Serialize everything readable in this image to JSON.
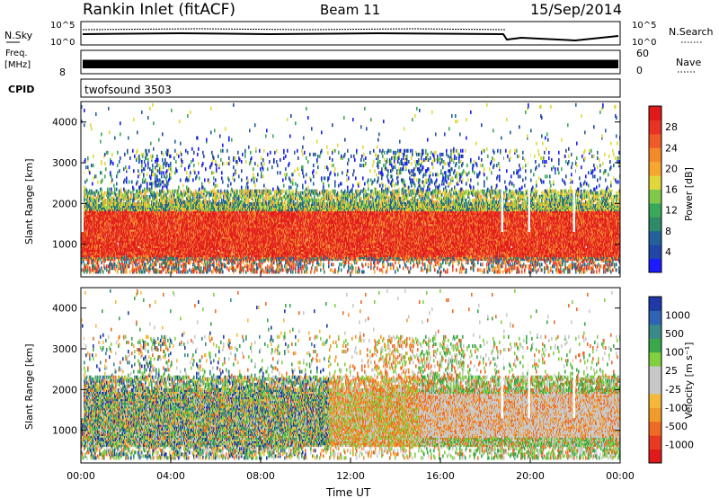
{
  "header": {
    "radar": "Rankin Inlet (fitACF)",
    "beam": "Beam 11",
    "date": "15/Sep/2014"
  },
  "top_panels": {
    "nsky": {
      "label": "N.Sky",
      "ticks": [
        "10^5",
        "10^0"
      ]
    },
    "nsearch": {
      "label": "N.Search",
      "ticks": [
        "10^5",
        "10^0"
      ]
    },
    "freq": {
      "label_line1": "Freq.",
      "label_line2": "[MHz]",
      "ticks": [
        "8"
      ]
    },
    "nave": {
      "label": "Nave",
      "ticks": [
        "60",
        "0"
      ]
    },
    "cpid": {
      "label": "CPID",
      "value": "twofsound 3503"
    }
  },
  "chart_data": [
    {
      "type": "heatmap",
      "name": "Power",
      "ylabel": "Slant Range [km]",
      "ylim": [
        200,
        4500
      ],
      "yticks": [
        1000,
        2000,
        3000,
        4000
      ],
      "xlim": [
        0,
        24
      ],
      "colorbar": {
        "label": "Power [dB]",
        "ticks": [
          "4",
          "8",
          "12",
          "16",
          "20",
          "24",
          "28"
        ],
        "colors": [
          "#1b1bff",
          "#2246a8",
          "#23609c",
          "#2f8a6a",
          "#3aa85a",
          "#7fc84a",
          "#e0d83a",
          "#f7a630",
          "#f38a2a",
          "#ef5a28",
          "#e83223",
          "#e01a1a"
        ]
      }
    },
    {
      "type": "heatmap",
      "name": "Velocity",
      "ylabel": "Slant Range [km]",
      "ylim": [
        200,
        4500
      ],
      "yticks": [
        1000,
        2000,
        3000,
        4000
      ],
      "xlim": [
        0,
        24
      ],
      "xlabel": "Time UT",
      "xticks": [
        "00:00",
        "04:00",
        "08:00",
        "12:00",
        "16:00",
        "20:00",
        "00:00"
      ],
      "colorbar": {
        "label": "Velocity [m s⁻¹]",
        "ticks": [
          "1000",
          "500",
          "100",
          "25",
          "-25",
          "-100",
          "-500",
          "-1000"
        ],
        "colors": [
          "#1f3aa8",
          "#2f64b4",
          "#3a8a8a",
          "#3aa84a",
          "#80d040",
          "#c8c8c8",
          "#c8c8c8",
          "#f5b83a",
          "#f29a2a",
          "#ef6a25",
          "#e83a22",
          "#e01a1a"
        ]
      }
    }
  ]
}
